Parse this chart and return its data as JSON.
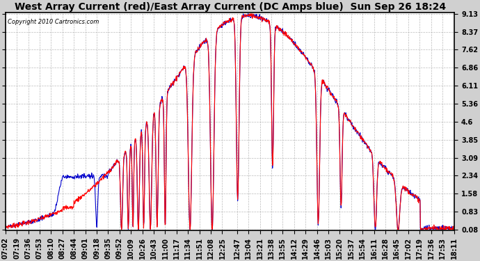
{
  "title": "West Array Current (red)/East Array Current (DC Amps blue)  Sun Sep 26 18:24",
  "copyright": "Copyright 2010 Cartronics.com",
  "yticks": [
    0.08,
    0.83,
    1.58,
    2.34,
    3.09,
    3.85,
    4.6,
    5.36,
    6.11,
    6.86,
    7.62,
    8.37,
    9.13
  ],
  "xtick_labels": [
    "07:02",
    "07:19",
    "07:36",
    "07:53",
    "08:10",
    "08:27",
    "08:44",
    "09:01",
    "09:18",
    "09:35",
    "09:52",
    "10:09",
    "10:26",
    "10:43",
    "11:00",
    "11:17",
    "11:34",
    "11:51",
    "12:08",
    "12:25",
    "12:47",
    "13:04",
    "13:21",
    "13:38",
    "13:55",
    "14:12",
    "14:29",
    "14:46",
    "15:03",
    "15:20",
    "15:37",
    "15:54",
    "16:11",
    "16:28",
    "16:45",
    "17:02",
    "17:19",
    "17:36",
    "17:53",
    "18:11"
  ],
  "background_color": "#d0d0d0",
  "plot_background": "#ffffff",
  "red_color": "#ff0000",
  "blue_color": "#0000cc",
  "grid_color": "#aaaaaa",
  "title_fontsize": 10,
  "tick_fontsize": 7,
  "ymin": 0.08,
  "ymax": 9.13
}
